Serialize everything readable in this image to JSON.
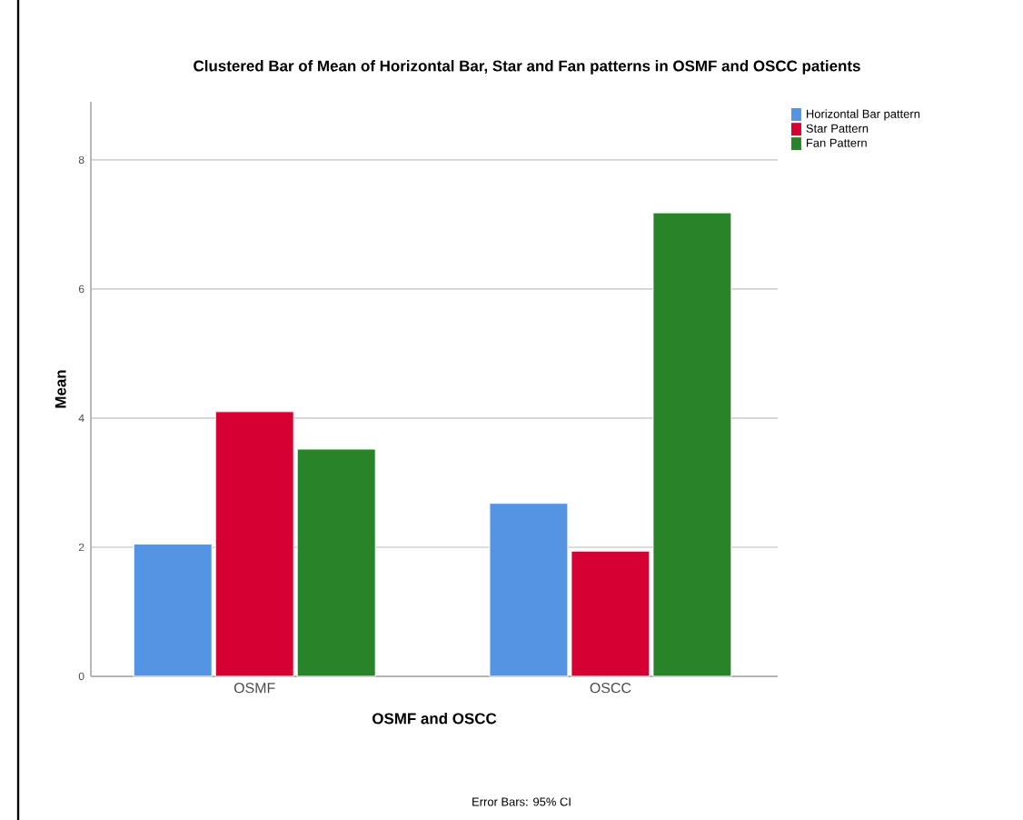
{
  "chart_data": {
    "type": "bar",
    "title": "Clustered Bar of Mean of Horizontal Bar, Star and Fan patterns in OSMF and OSCC patients",
    "categories": [
      "OSMF",
      "OSCC"
    ],
    "series": [
      {
        "name": "Horizontal Bar pattern",
        "color": "#5594e3",
        "values": [
          2.05,
          2.68
        ]
      },
      {
        "name": "Star Pattern",
        "color": "#d70033",
        "values": [
          4.1,
          1.94
        ]
      },
      {
        "name": "Fan Pattern",
        "color": "#298329",
        "values": [
          3.52,
          7.18
        ]
      }
    ],
    "xlabel": "OSMF and OSCC",
    "ylabel": "Mean",
    "ylim": [
      0,
      8.9
    ],
    "yticks": [
      0,
      2,
      4,
      6,
      8
    ],
    "grid": "y",
    "legend": "top right",
    "annotations": [
      "Error Bars: 95% CI"
    ]
  }
}
